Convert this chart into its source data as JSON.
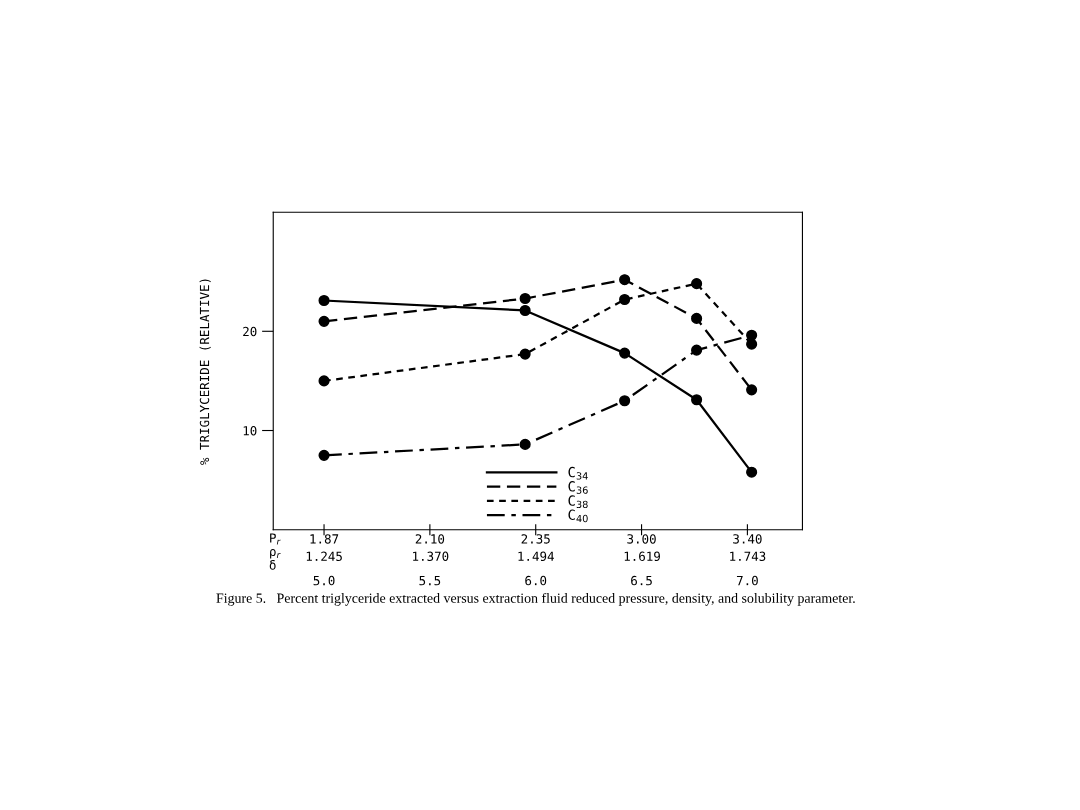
{
  "chart_data": {
    "type": "line",
    "ylabel": "% TRIGLYCERIDE (RELATIVE)",
    "x": [
      5.0,
      5.95,
      6.42,
      6.76,
      7.02
    ],
    "xlim": [
      4.76,
      7.26
    ],
    "xticks": [
      {
        "value": 5.0,
        "label": "5.0"
      },
      {
        "value": 5.5,
        "label": "5.5"
      },
      {
        "value": 6.0,
        "label": "6.0"
      },
      {
        "value": 6.5,
        "label": "6.5"
      },
      {
        "value": 7.0,
        "label": "7.0"
      }
    ],
    "xlabel": "δ",
    "x2label": "ρ$_{r}$",
    "x2lim": [
      1.1852,
      1.8077
    ],
    "x2ticks": [
      1.245,
      {
        "value": 1.37,
        "label": "1.370"
      },
      1.494,
      1.619,
      1.743
    ],
    "ylim": [
      0,
      32
    ],
    "yticks": [
      10,
      20
    ],
    "series": [
      {
        "name": "C$_{34}$",
        "color": "#000000",
        "line_style": "solid",
        "values": [
          23.1,
          22.1,
          17.8,
          13.1,
          5.8
        ]
      },
      {
        "name": "C$_{36}$",
        "color": "#000000",
        "line_style": "dashed",
        "values": [
          21.0,
          23.3,
          25.2,
          21.3,
          14.1
        ]
      },
      {
        "name": "C$_{38}$",
        "color": "#000000",
        "line_style": "dotted",
        "values": [
          15.0,
          17.7,
          23.2,
          24.8,
          18.7
        ]
      },
      {
        "name": "C$_{40}$",
        "color": "#000000",
        "line_style": "dashdot",
        "values": [
          7.5,
          8.6,
          13.0,
          18.1,
          19.6
        ]
      }
    ],
    "marker": "circle",
    "legend": "bottom",
    "grid": false,
    "annotations": [
      "P$_{r}$",
      "1.87",
      "2.10",
      "2.35",
      "3.00",
      "3.40",
      "Figure 5.   Percent triglyceride extracted versus extraction fluid reduced pressure, density, and solubility parameter."
    ]
  }
}
